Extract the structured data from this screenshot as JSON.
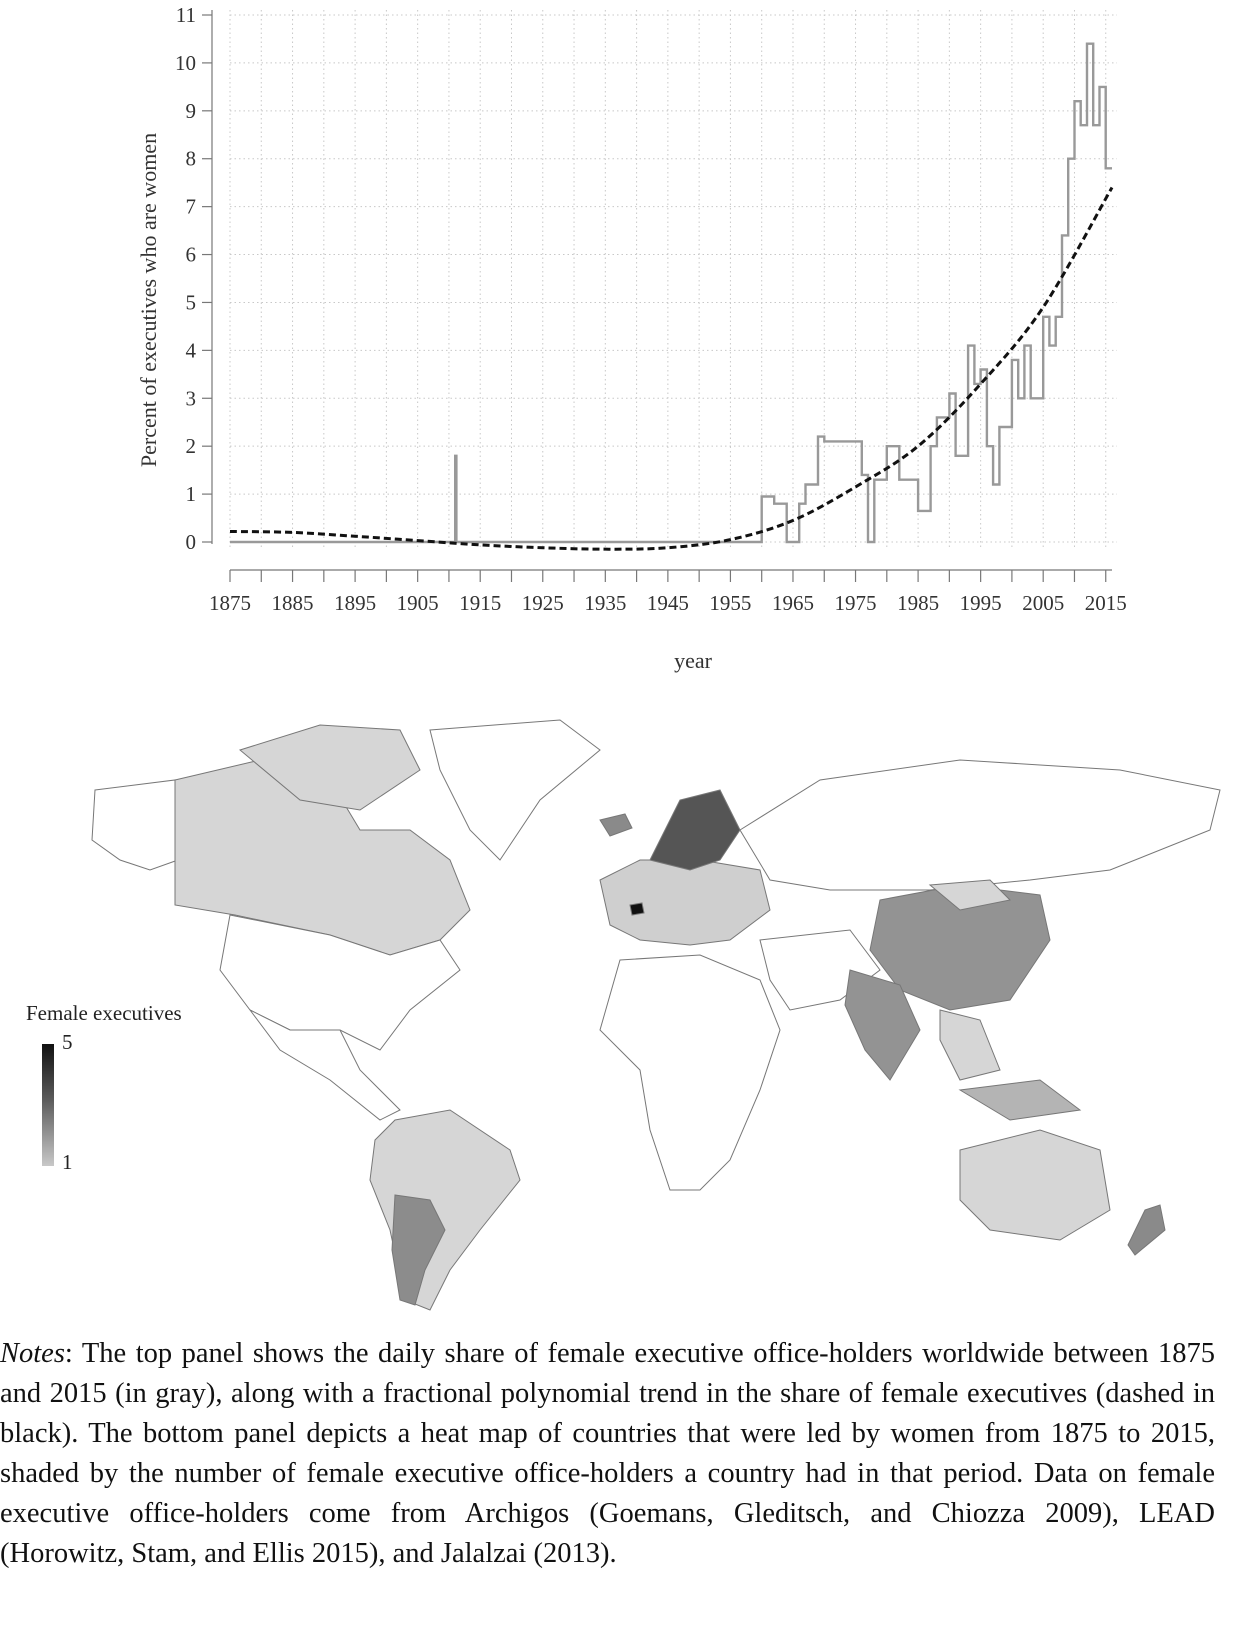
{
  "chart_data": {
    "type": "line",
    "title": "",
    "xlabel": "year",
    "ylabel": "Percent of executives who are women",
    "xlim": [
      1875,
      2016
    ],
    "ylim": [
      0,
      11
    ],
    "x_ticks": [
      1875,
      1885,
      1895,
      1905,
      1915,
      1925,
      1935,
      1945,
      1955,
      1965,
      1975,
      1985,
      1995,
      2005,
      2015
    ],
    "y_ticks": [
      0,
      1,
      2,
      3,
      4,
      5,
      6,
      7,
      8,
      9,
      10,
      11
    ],
    "grid": true,
    "series": [
      {
        "style": "gray step line",
        "color": "#999999",
        "x": [
          1875,
          1911,
          1911,
          1911.2,
          1911.2,
          1960,
          1960,
          1962,
          1962,
          1964,
          1964,
          1966,
          1966,
          1967,
          1967,
          1969,
          1969,
          1970,
          1970,
          1976,
          1976,
          1977,
          1977,
          1978,
          1978,
          1980,
          1980,
          1982,
          1982,
          1985,
          1985,
          1987,
          1987,
          1988,
          1988,
          1990,
          1990,
          1991,
          1991,
          1993,
          1993,
          1994,
          1994,
          1995,
          1995,
          1996,
          1996,
          1997,
          1997,
          1998,
          1998,
          2000,
          2000,
          2001,
          2001,
          2002,
          2002,
          2003,
          2003,
          2005,
          2005,
          2006,
          2006,
          2007,
          2007,
          2008,
          2008,
          2009,
          2009,
          2010,
          2010,
          2011,
          2011,
          2012,
          2012,
          2013,
          2013,
          2014,
          2014,
          2015,
          2015,
          2016
        ],
        "y": [
          0,
          0,
          1.8,
          1.8,
          0,
          0,
          0.95,
          0.95,
          0.8,
          0.8,
          0,
          0,
          0.8,
          0.8,
          1.2,
          1.2,
          2.2,
          2.2,
          2.1,
          2.1,
          1.4,
          1.4,
          0,
          0,
          1.3,
          1.3,
          2.0,
          2.0,
          1.3,
          1.3,
          0.65,
          0.65,
          2.0,
          2.0,
          2.6,
          2.6,
          3.1,
          3.1,
          1.8,
          1.8,
          4.1,
          4.1,
          3.3,
          3.3,
          3.6,
          3.6,
          2.0,
          2.0,
          1.2,
          1.2,
          2.4,
          2.4,
          3.8,
          3.8,
          3.0,
          3.0,
          4.1,
          4.1,
          3.0,
          3.0,
          4.7,
          4.7,
          4.1,
          4.1,
          4.7,
          4.7,
          6.4,
          6.4,
          8.0,
          8.0,
          9.2,
          9.2,
          8.7,
          8.7,
          10.4,
          10.4,
          8.7,
          8.7,
          9.5,
          9.5,
          7.8,
          7.8
        ]
      },
      {
        "style": "black dashed trend",
        "color": "#111111",
        "x": [
          1875,
          1885,
          1895,
          1905,
          1915,
          1925,
          1935,
          1945,
          1955,
          1965,
          1975,
          1985,
          1995,
          2005,
          2016
        ],
        "y": [
          0.22,
          0.2,
          0.12,
          0.03,
          -0.06,
          -0.12,
          -0.15,
          -0.12,
          0.05,
          0.45,
          1.15,
          2.0,
          3.3,
          4.9,
          7.4
        ]
      }
    ]
  },
  "map": {
    "legend_title": "Female executives",
    "legend_max": "5",
    "legend_min": "1",
    "shades": [
      "#dcdcdc",
      "#cfcfcf",
      "#b4b4b4",
      "#939393",
      "#8a8a8a",
      "#555555",
      "#1a1a1a"
    ]
  },
  "notes": {
    "label": "Notes",
    "text": ": The top panel shows the daily share of female executive office-holders worldwide between 1875 and 2015 (in gray), along with a fractional polynomial trend in the share of female executives (dashed in black). The bottom panel depicts a heat map of countries that were led by women from 1875 to 2015, shaded by the number of female executive office-holders a country had in that period. Data on female executive office-holders come from Archigos (Goemans, Gleditsch, and Chiozza 2009), LEAD (Horowitz, Stam, and Ellis 2015), and Jalalzai (2013)."
  }
}
